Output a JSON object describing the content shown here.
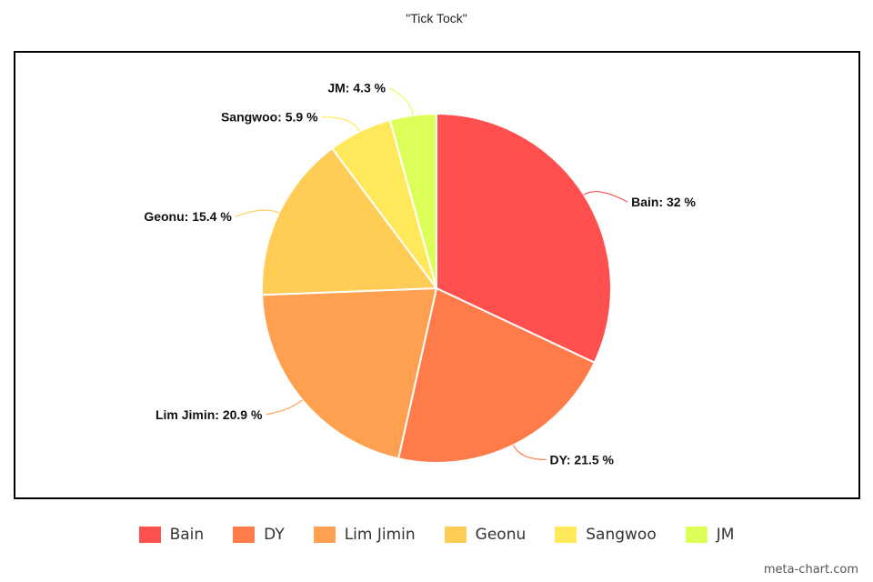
{
  "chart_data": {
    "type": "pie",
    "title": "\"Tick Tock\"",
    "categories": [
      "Bain",
      "DY",
      "Lim Jimin",
      "Geonu",
      "Sangwoo",
      "JM"
    ],
    "values": [
      32,
      21.5,
      20.9,
      15.4,
      5.9,
      4.3
    ],
    "unit": "%",
    "colors": [
      "#ff4f4f",
      "#ff7c4a",
      "#ff9f50",
      "#ffcc55",
      "#ffe95a",
      "#ddff5a"
    ],
    "labels": [
      "Bain: 32 %",
      "DY: 21.5 %",
      "Lim Jimin: 20.9 %",
      "Geonu: 15.4 %",
      "Sangwoo: 5.9 %",
      "JM: 4.3 %"
    ],
    "legend": {
      "placement": "bottom",
      "entries": [
        "Bain",
        "DY",
        "Lim Jimin",
        "Geonu",
        "Sangwoo",
        "JM"
      ]
    }
  },
  "watermark": "meta-chart.com"
}
